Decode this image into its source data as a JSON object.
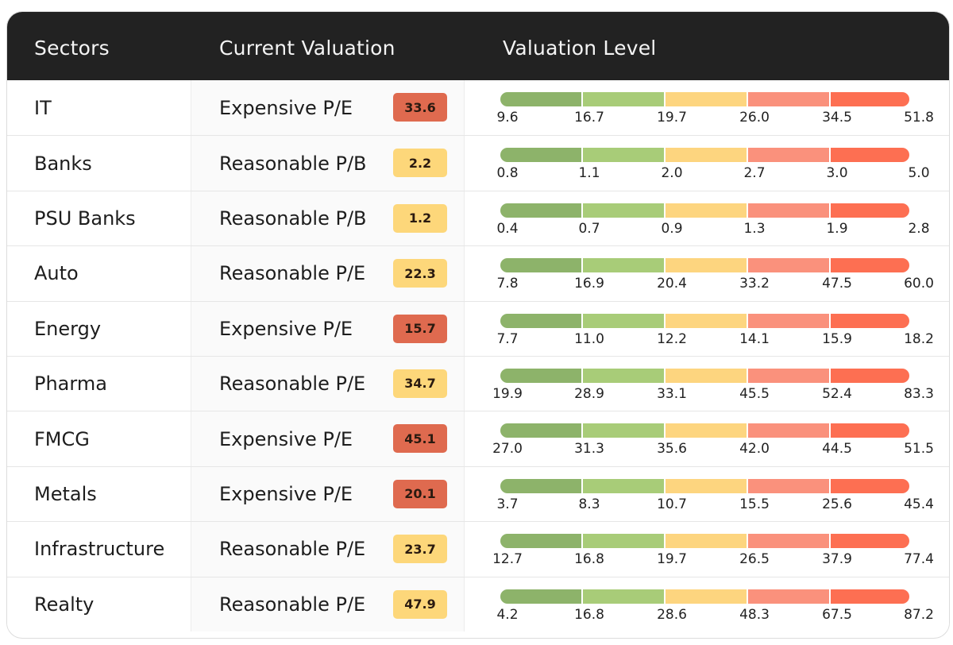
{
  "header": {
    "sectors": "Sectors",
    "current_valuation": "Current Valuation",
    "valuation_level": "Valuation Level"
  },
  "colors": {
    "expensive_badge": "#df6a4f",
    "reasonable_badge": "#fdd77a",
    "level_1": "#8db36a",
    "level_2": "#a8cc78",
    "level_3": "#fdd57f",
    "level_4": "#fa917c",
    "level_5": "#fd6f52"
  },
  "rows": [
    {
      "sector": "IT",
      "valuation": "Expensive P/E",
      "value": "33.6",
      "status": "expensive",
      "ticks": [
        "9.6",
        "16.7",
        "19.7",
        "26.0",
        "34.5",
        "51.8"
      ]
    },
    {
      "sector": "Banks",
      "valuation": "Reasonable P/B",
      "value": "2.2",
      "status": "reasonable",
      "ticks": [
        "0.8",
        "1.1",
        "2.0",
        "2.7",
        "3.0",
        "5.0"
      ]
    },
    {
      "sector": "PSU Banks",
      "valuation": "Reasonable P/B",
      "value": "1.2",
      "status": "reasonable",
      "ticks": [
        "0.4",
        "0.7",
        "0.9",
        "1.3",
        "1.9",
        "2.8"
      ]
    },
    {
      "sector": "Auto",
      "valuation": "Reasonable P/E",
      "value": "22.3",
      "status": "reasonable",
      "ticks": [
        "7.8",
        "16.9",
        "20.4",
        "33.2",
        "47.5",
        "60.0"
      ]
    },
    {
      "sector": "Energy",
      "valuation": "Expensive P/E",
      "value": "15.7",
      "status": "expensive",
      "ticks": [
        "7.7",
        "11.0",
        "12.2",
        "14.1",
        "15.9",
        "18.2"
      ]
    },
    {
      "sector": "Pharma",
      "valuation": "Reasonable P/E",
      "value": "34.7",
      "status": "reasonable",
      "ticks": [
        "19.9",
        "28.9",
        "33.1",
        "45.5",
        "52.4",
        "83.3"
      ]
    },
    {
      "sector": "FMCG",
      "valuation": "Expensive P/E",
      "value": "45.1",
      "status": "expensive",
      "ticks": [
        "27.0",
        "31.3",
        "35.6",
        "42.0",
        "44.5",
        "51.5"
      ]
    },
    {
      "sector": "Metals",
      "valuation": "Expensive P/E",
      "value": "20.1",
      "status": "expensive",
      "ticks": [
        "3.7",
        "8.3",
        "10.7",
        "15.5",
        "25.6",
        "45.4"
      ]
    },
    {
      "sector": "Infrastructure",
      "valuation": "Reasonable P/E",
      "value": "23.7",
      "status": "reasonable",
      "ticks": [
        "12.7",
        "16.8",
        "19.7",
        "26.5",
        "37.9",
        "77.4"
      ]
    },
    {
      "sector": "Realty",
      "valuation": "Reasonable P/E",
      "value": "47.9",
      "status": "reasonable",
      "ticks": [
        "4.2",
        "16.8",
        "28.6",
        "48.3",
        "67.5",
        "87.2"
      ]
    }
  ]
}
